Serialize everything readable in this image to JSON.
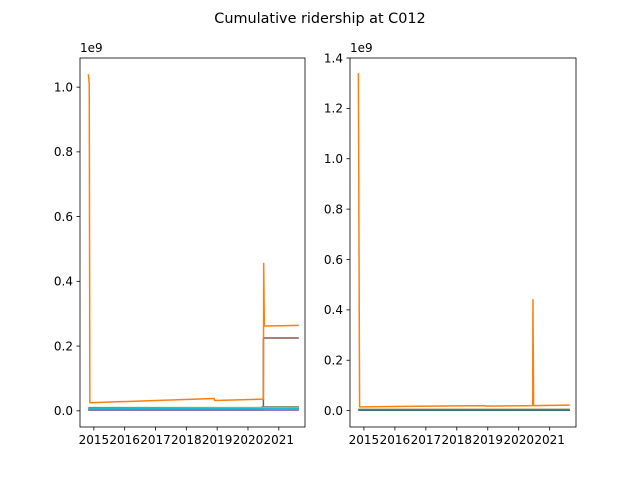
{
  "chart_data": {
    "title": "Cumulative ridership at C012",
    "type": "line",
    "panels": [
      {
        "name": "left",
        "xlim": [
          2014.55,
          2021.85
        ],
        "ylim": [
          -0.05,
          1.09
        ],
        "y_multiplier_label": "1e9",
        "x_ticks": [
          2015,
          2016,
          2017,
          2018,
          2019,
          2020,
          2021
        ],
        "x_tick_labels": [
          "2015",
          "2016",
          "2017",
          "2018",
          "2019",
          "2020",
          "2021"
        ],
        "y_ticks": [
          0.0,
          0.2,
          0.4,
          0.6,
          0.8,
          1.0
        ],
        "y_tick_labels": [
          "0.0",
          "0.2",
          "0.4",
          "0.6",
          "0.8",
          "1.0"
        ],
        "series": [
          {
            "color": "#1f77b4",
            "points": [
              [
                2014.82,
                0.003
              ],
              [
                2021.65,
                0.003
              ]
            ]
          },
          {
            "color": "#2ca02c",
            "points": [
              [
                2014.82,
                0.01
              ],
              [
                2021.65,
                0.01
              ]
            ]
          },
          {
            "color": "#d62728",
            "points": [
              [
                2014.82,
                0.005
              ],
              [
                2021.65,
                0.005
              ]
            ]
          },
          {
            "color": "#9467bd",
            "points": [
              [
                2014.82,
                0.002
              ],
              [
                2021.65,
                0.002
              ]
            ]
          },
          {
            "color": "#8c564b",
            "points": [
              [
                2014.82,
                0.004
              ],
              [
                2020.5,
                0.004
              ],
              [
                2020.5,
                0.225
              ],
              [
                2021.65,
                0.225
              ]
            ]
          },
          {
            "color": "#e377c2",
            "points": [
              [
                2014.82,
                0.006
              ],
              [
                2021.65,
                0.006
              ]
            ]
          },
          {
            "color": "#7f7f7f",
            "points": [
              [
                2014.82,
                0.005
              ],
              [
                2020.45,
                0.005
              ],
              [
                2020.45,
                0.012
              ],
              [
                2021.65,
                0.012
              ]
            ]
          },
          {
            "color": "#bcbd22",
            "points": [
              [
                2014.82,
                0.008
              ],
              [
                2021.65,
                0.01
              ]
            ]
          },
          {
            "color": "#17becf",
            "points": [
              [
                2014.82,
                0.007
              ],
              [
                2021.65,
                0.007
              ]
            ]
          },
          {
            "color": "#ff7f0e",
            "points": [
              [
                2014.82,
                1.04
              ],
              [
                2014.85,
                1.01
              ],
              [
                2014.87,
                0.025
              ],
              [
                2018.9,
                0.038
              ],
              [
                2018.92,
                0.032
              ],
              [
                2020.5,
                0.036
              ],
              [
                2020.51,
                0.455
              ],
              [
                2020.53,
                0.262
              ],
              [
                2021.65,
                0.264
              ]
            ]
          }
        ]
      },
      {
        "name": "right",
        "xlim": [
          2014.55,
          2021.85
        ],
        "ylim": [
          -0.065,
          1.4
        ],
        "y_multiplier_label": "1e9",
        "x_ticks": [
          2015,
          2016,
          2017,
          2018,
          2019,
          2020,
          2021
        ],
        "x_tick_labels": [
          "2015",
          "2016",
          "2017",
          "2018",
          "2019",
          "2020",
          "2021"
        ],
        "y_ticks": [
          0.0,
          0.2,
          0.4,
          0.6,
          0.8,
          1.0,
          1.2,
          1.4
        ],
        "y_tick_labels": [
          "0.0",
          "0.2",
          "0.4",
          "0.6",
          "0.8",
          "1.0",
          "1.2",
          "1.4"
        ],
        "series": [
          {
            "color": "#1f77b4",
            "points": [
              [
                2014.82,
                0.003
              ],
              [
                2021.65,
                0.003
              ]
            ]
          },
          {
            "color": "#2ca02c",
            "points": [
              [
                2014.82,
                0.004
              ],
              [
                2021.65,
                0.004
              ]
            ]
          },
          {
            "color": "#d62728",
            "points": [
              [
                2014.82,
                0.002
              ],
              [
                2021.65,
                0.002
              ]
            ]
          },
          {
            "color": "#9467bd",
            "points": [
              [
                2014.82,
                0.003
              ],
              [
                2021.65,
                0.003
              ]
            ]
          },
          {
            "color": "#8c564b",
            "points": [
              [
                2014.82,
                0.004
              ],
              [
                2021.65,
                0.004
              ]
            ]
          },
          {
            "color": "#e377c2",
            "points": [
              [
                2014.82,
                0.003
              ],
              [
                2021.65,
                0.003
              ]
            ]
          },
          {
            "color": "#7f7f7f",
            "points": [
              [
                2014.82,
                0.005
              ],
              [
                2021.65,
                0.005
              ]
            ]
          },
          {
            "color": "#bcbd22",
            "points": [
              [
                2014.82,
                0.004
              ],
              [
                2021.65,
                0.004
              ]
            ]
          },
          {
            "color": "#17becf",
            "points": [
              [
                2014.82,
                0.003
              ],
              [
                2021.65,
                0.003
              ]
            ]
          },
          {
            "color": "#2f6f74",
            "points": [
              [
                2014.82,
                0.002
              ],
              [
                2021.65,
                0.002
              ]
            ]
          },
          {
            "color": "#ff7f0e",
            "points": [
              [
                2014.82,
                1.34
              ],
              [
                2014.86,
                0.015
              ],
              [
                2017.2,
                0.018
              ],
              [
                2018.9,
                0.02
              ],
              [
                2018.92,
                0.018
              ],
              [
                2020.45,
                0.02
              ],
              [
                2020.46,
                0.44
              ],
              [
                2020.48,
                0.02
              ],
              [
                2021.65,
                0.022
              ]
            ]
          }
        ]
      }
    ]
  }
}
